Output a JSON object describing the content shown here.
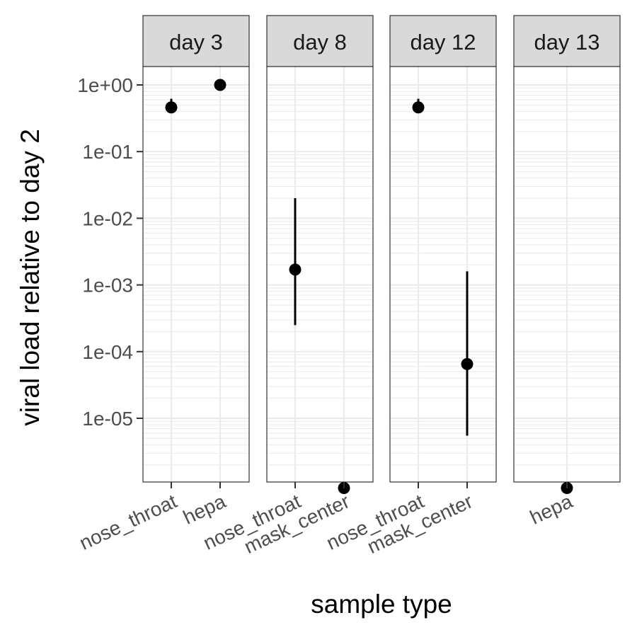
{
  "chart_data": {
    "type": "scatter",
    "facet_by": "day",
    "y_scale": "log10",
    "ylim": [
      9e-07,
      1.0
    ],
    "ylabel": "viral load relative to day 2",
    "xlabel": "sample type",
    "y_ticks": [
      {
        "value": 1,
        "label": "1e+00"
      },
      {
        "value": 0.1,
        "label": "1e-01"
      },
      {
        "value": 0.01,
        "label": "1e-02"
      },
      {
        "value": 0.001,
        "label": "1e-03"
      },
      {
        "value": 0.0001,
        "label": "1e-04"
      },
      {
        "value": 1e-05,
        "label": "1e-05"
      }
    ],
    "grid": true,
    "legend": "none",
    "panels": [
      {
        "strip": "day 3",
        "categories": [
          "nose_throat",
          "hepa"
        ],
        "points": [
          {
            "category": "nose_throat",
            "y": 0.46,
            "ymin": 0.46,
            "ymax": 0.62
          },
          {
            "category": "hepa",
            "y": 1.0
          }
        ]
      },
      {
        "strip": "day 8",
        "categories": [
          "nose_throat",
          "mask_center"
        ],
        "points": [
          {
            "category": "nose_throat",
            "y": 0.0017,
            "ymin": 0.00025,
            "ymax": 0.02
          },
          {
            "category": "mask_center",
            "y": 9e-07
          }
        ]
      },
      {
        "strip": "day 12",
        "categories": [
          "nose_throat",
          "mask_center"
        ],
        "points": [
          {
            "category": "nose_throat",
            "y": 0.46,
            "ymin": 0.46,
            "ymax": 0.62
          },
          {
            "category": "mask_center",
            "y": 6.5e-05,
            "ymin": 5.5e-06,
            "ymax": 0.0016
          }
        ]
      },
      {
        "strip": "day 13",
        "categories": [
          "hepa"
        ],
        "points": [
          {
            "category": "hepa",
            "y": 9e-07
          }
        ]
      }
    ]
  }
}
